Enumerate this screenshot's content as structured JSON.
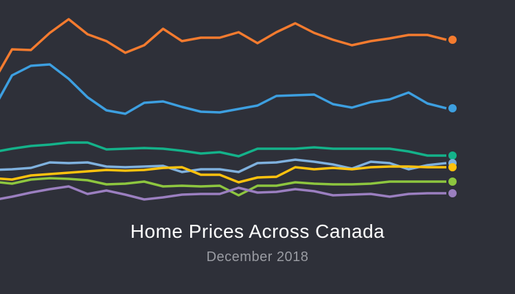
{
  "chart_data": {
    "type": "line",
    "title": "Home Prices Across Canada",
    "subtitle": "December 2018",
    "xlabel": "",
    "ylabel": "",
    "ylim": [
      0,
      300
    ],
    "grid": false,
    "legend": "none",
    "end_markers": true,
    "series": [
      {
        "color": "#f47b2f",
        "values": [
          180,
          228,
          227,
          252,
          272,
          250,
          240,
          223,
          234,
          258,
          240,
          245,
          245,
          253,
          237,
          253,
          266,
          252,
          242,
          234,
          240,
          244,
          249,
          249,
          242
        ]
      },
      {
        "color": "#3d9fe0",
        "values": [
          140,
          190,
          204,
          206,
          185,
          158,
          139,
          134,
          150,
          152,
          144,
          137,
          136,
          141,
          146,
          160,
          161,
          162,
          148,
          143,
          151,
          155,
          165,
          149,
          142
        ]
      },
      {
        "color": "#14b28a",
        "values": [
          78,
          83,
          87,
          89,
          92,
          92,
          82,
          83,
          84,
          83,
          80,
          76,
          78,
          72,
          83,
          83,
          83,
          85,
          83,
          83,
          83,
          83,
          79,
          73,
          73
        ]
      },
      {
        "color": "#7fb1de",
        "values": [
          52,
          53,
          55,
          63,
          62,
          63,
          57,
          56,
          57,
          58,
          49,
          53,
          53,
          49,
          62,
          63,
          67,
          64,
          60,
          54,
          64,
          62,
          53,
          59,
          62
        ]
      },
      {
        "color": "#ffc20e",
        "values": [
          40,
          38,
          44,
          46,
          48,
          50,
          52,
          51,
          52,
          55,
          56,
          45,
          45,
          34,
          41,
          42,
          56,
          53,
          55,
          53,
          56,
          57,
          57,
          56,
          56
        ]
      },
      {
        "color": "#8dc63f",
        "values": [
          35,
          32,
          38,
          40,
          39,
          37,
          31,
          32,
          35,
          28,
          29,
          28,
          29,
          15,
          29,
          29,
          34,
          32,
          31,
          31,
          32,
          35,
          35,
          35,
          35
        ]
      },
      {
        "color": "#9b7fc0",
        "values": [
          8,
          13,
          19,
          24,
          28,
          17,
          22,
          16,
          9,
          12,
          16,
          17,
          17,
          26,
          19,
          20,
          24,
          21,
          15,
          16,
          17,
          13,
          17,
          18,
          18
        ]
      }
    ]
  }
}
